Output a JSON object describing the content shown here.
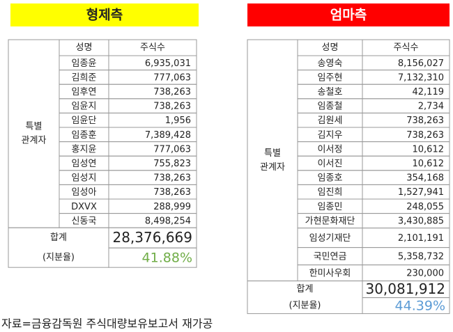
{
  "left": {
    "title": "형제측",
    "columns": [
      "성명",
      "주식수"
    ],
    "group_label": [
      "특별",
      "관계자"
    ],
    "rows": [
      [
        "임종윤",
        "6,935,031"
      ],
      [
        "김희준",
        "777,063"
      ],
      [
        "임후연",
        "738,263"
      ],
      [
        "임윤지",
        "738,263"
      ],
      [
        "임윤단",
        "1,956"
      ],
      [
        "임종훈",
        "7,389,428"
      ],
      [
        "홍지윤",
        "777,063"
      ],
      [
        "임성연",
        "755,823"
      ],
      [
        "임성지",
        "738,263"
      ],
      [
        "임성아",
        "738,263"
      ],
      [
        "DXVX",
        "288,999"
      ],
      [
        "신동국",
        "8,498,254"
      ]
    ],
    "total_label": [
      "합계",
      "(지분율)"
    ],
    "total": "28,376,669",
    "ratio": "41.88%"
  },
  "right": {
    "title": "엄마측",
    "columns": [
      "성명",
      "주식수"
    ],
    "group_label": [
      "특별",
      "관계자"
    ],
    "rows": [
      [
        "송영숙",
        "8,156,027"
      ],
      [
        "임주현",
        "7,132,310"
      ],
      [
        "송철호",
        "42,119"
      ],
      [
        "임종철",
        "2,734"
      ],
      [
        "김원세",
        "738,263"
      ],
      [
        "김지우",
        "738,263"
      ],
      [
        "이서정",
        "10,612"
      ],
      [
        "이서진",
        "10,612"
      ],
      [
        "임종호",
        "354,168"
      ],
      [
        "임진희",
        "1,527,941"
      ],
      [
        "임종민",
        "248,055"
      ],
      [
        "가현문화재단",
        "3,430,885"
      ],
      [
        "임성기재단",
        "2,101,191"
      ],
      [
        "국민연금",
        "5,358,732"
      ],
      [
        "한미사우회",
        "230,000"
      ]
    ],
    "total_label": [
      "합계",
      "(지분율)"
    ],
    "total": "30,081,912",
    "ratio": "44.39%"
  },
  "source": "자료=금융감독원 주식대량보유보고서 재가공"
}
